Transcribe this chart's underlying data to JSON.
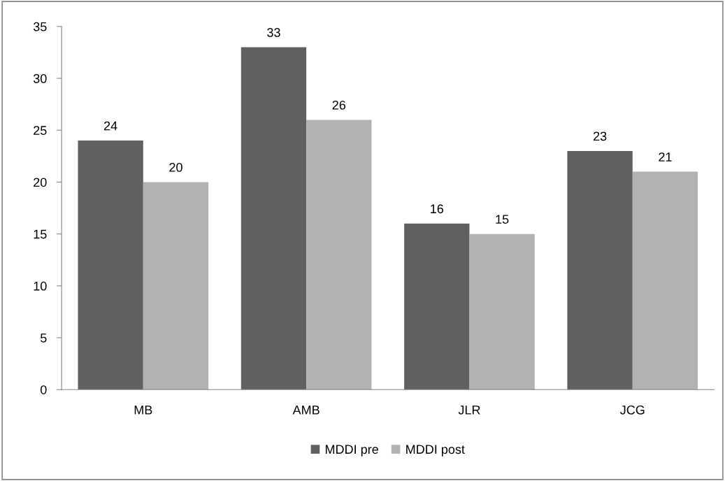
{
  "chart_data": {
    "type": "bar",
    "categories": [
      "MB",
      "AMB",
      "JLR",
      "JCG"
    ],
    "series": [
      {
        "name": "MDDI pre",
        "color": "#606060",
        "values": [
          24,
          33,
          16,
          23
        ]
      },
      {
        "name": "MDDI post",
        "color": "#b2b2b2",
        "values": [
          20,
          26,
          15,
          21
        ]
      }
    ],
    "ylim": [
      0,
      35
    ],
    "yticks": [
      0,
      5,
      10,
      15,
      20,
      25,
      30,
      35
    ],
    "data_labels": true,
    "grid": false,
    "legend": "bottom"
  }
}
